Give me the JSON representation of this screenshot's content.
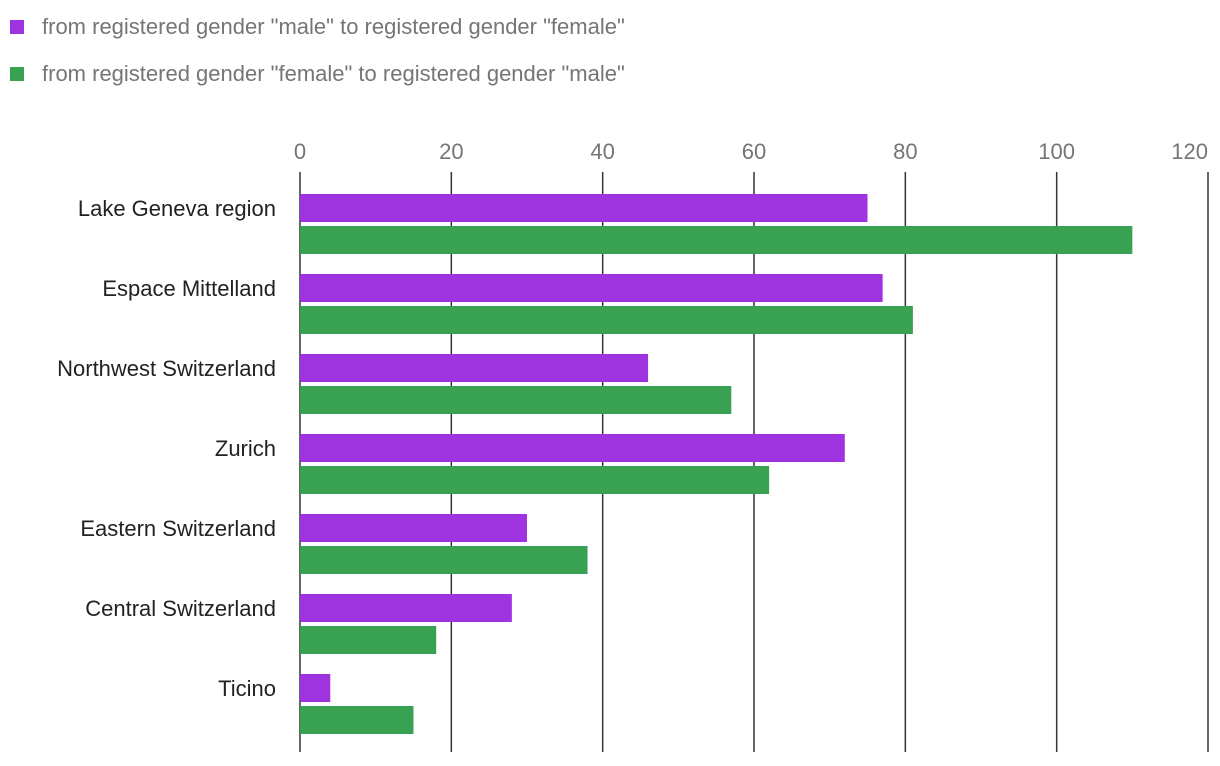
{
  "chart_data": {
    "type": "bar",
    "orientation": "horizontal",
    "title": "",
    "xlabel": "",
    "ylabel": "",
    "xlim": [
      0,
      120
    ],
    "x_ticks": [
      "0",
      "20",
      "40",
      "60",
      "80",
      "100",
      "120"
    ],
    "grid": true,
    "legend_position": "top-left",
    "categories": [
      "Lake Geneva region",
      "Espace Mittelland",
      "Northwest Switzerland",
      "Zurich",
      "Eastern Switzerland",
      "Central Switzerland",
      "Ticino"
    ],
    "series": [
      {
        "name": "from registered gender \"male\" to registered gender \"female\"",
        "color": "#a033e0",
        "values": [
          75,
          77,
          46,
          72,
          30,
          28,
          4
        ]
      },
      {
        "name": "from registered gender \"female\" to registered gender \"male\"",
        "color": "#38a152",
        "values": [
          110,
          81,
          57,
          62,
          38,
          18,
          15
        ]
      }
    ]
  }
}
